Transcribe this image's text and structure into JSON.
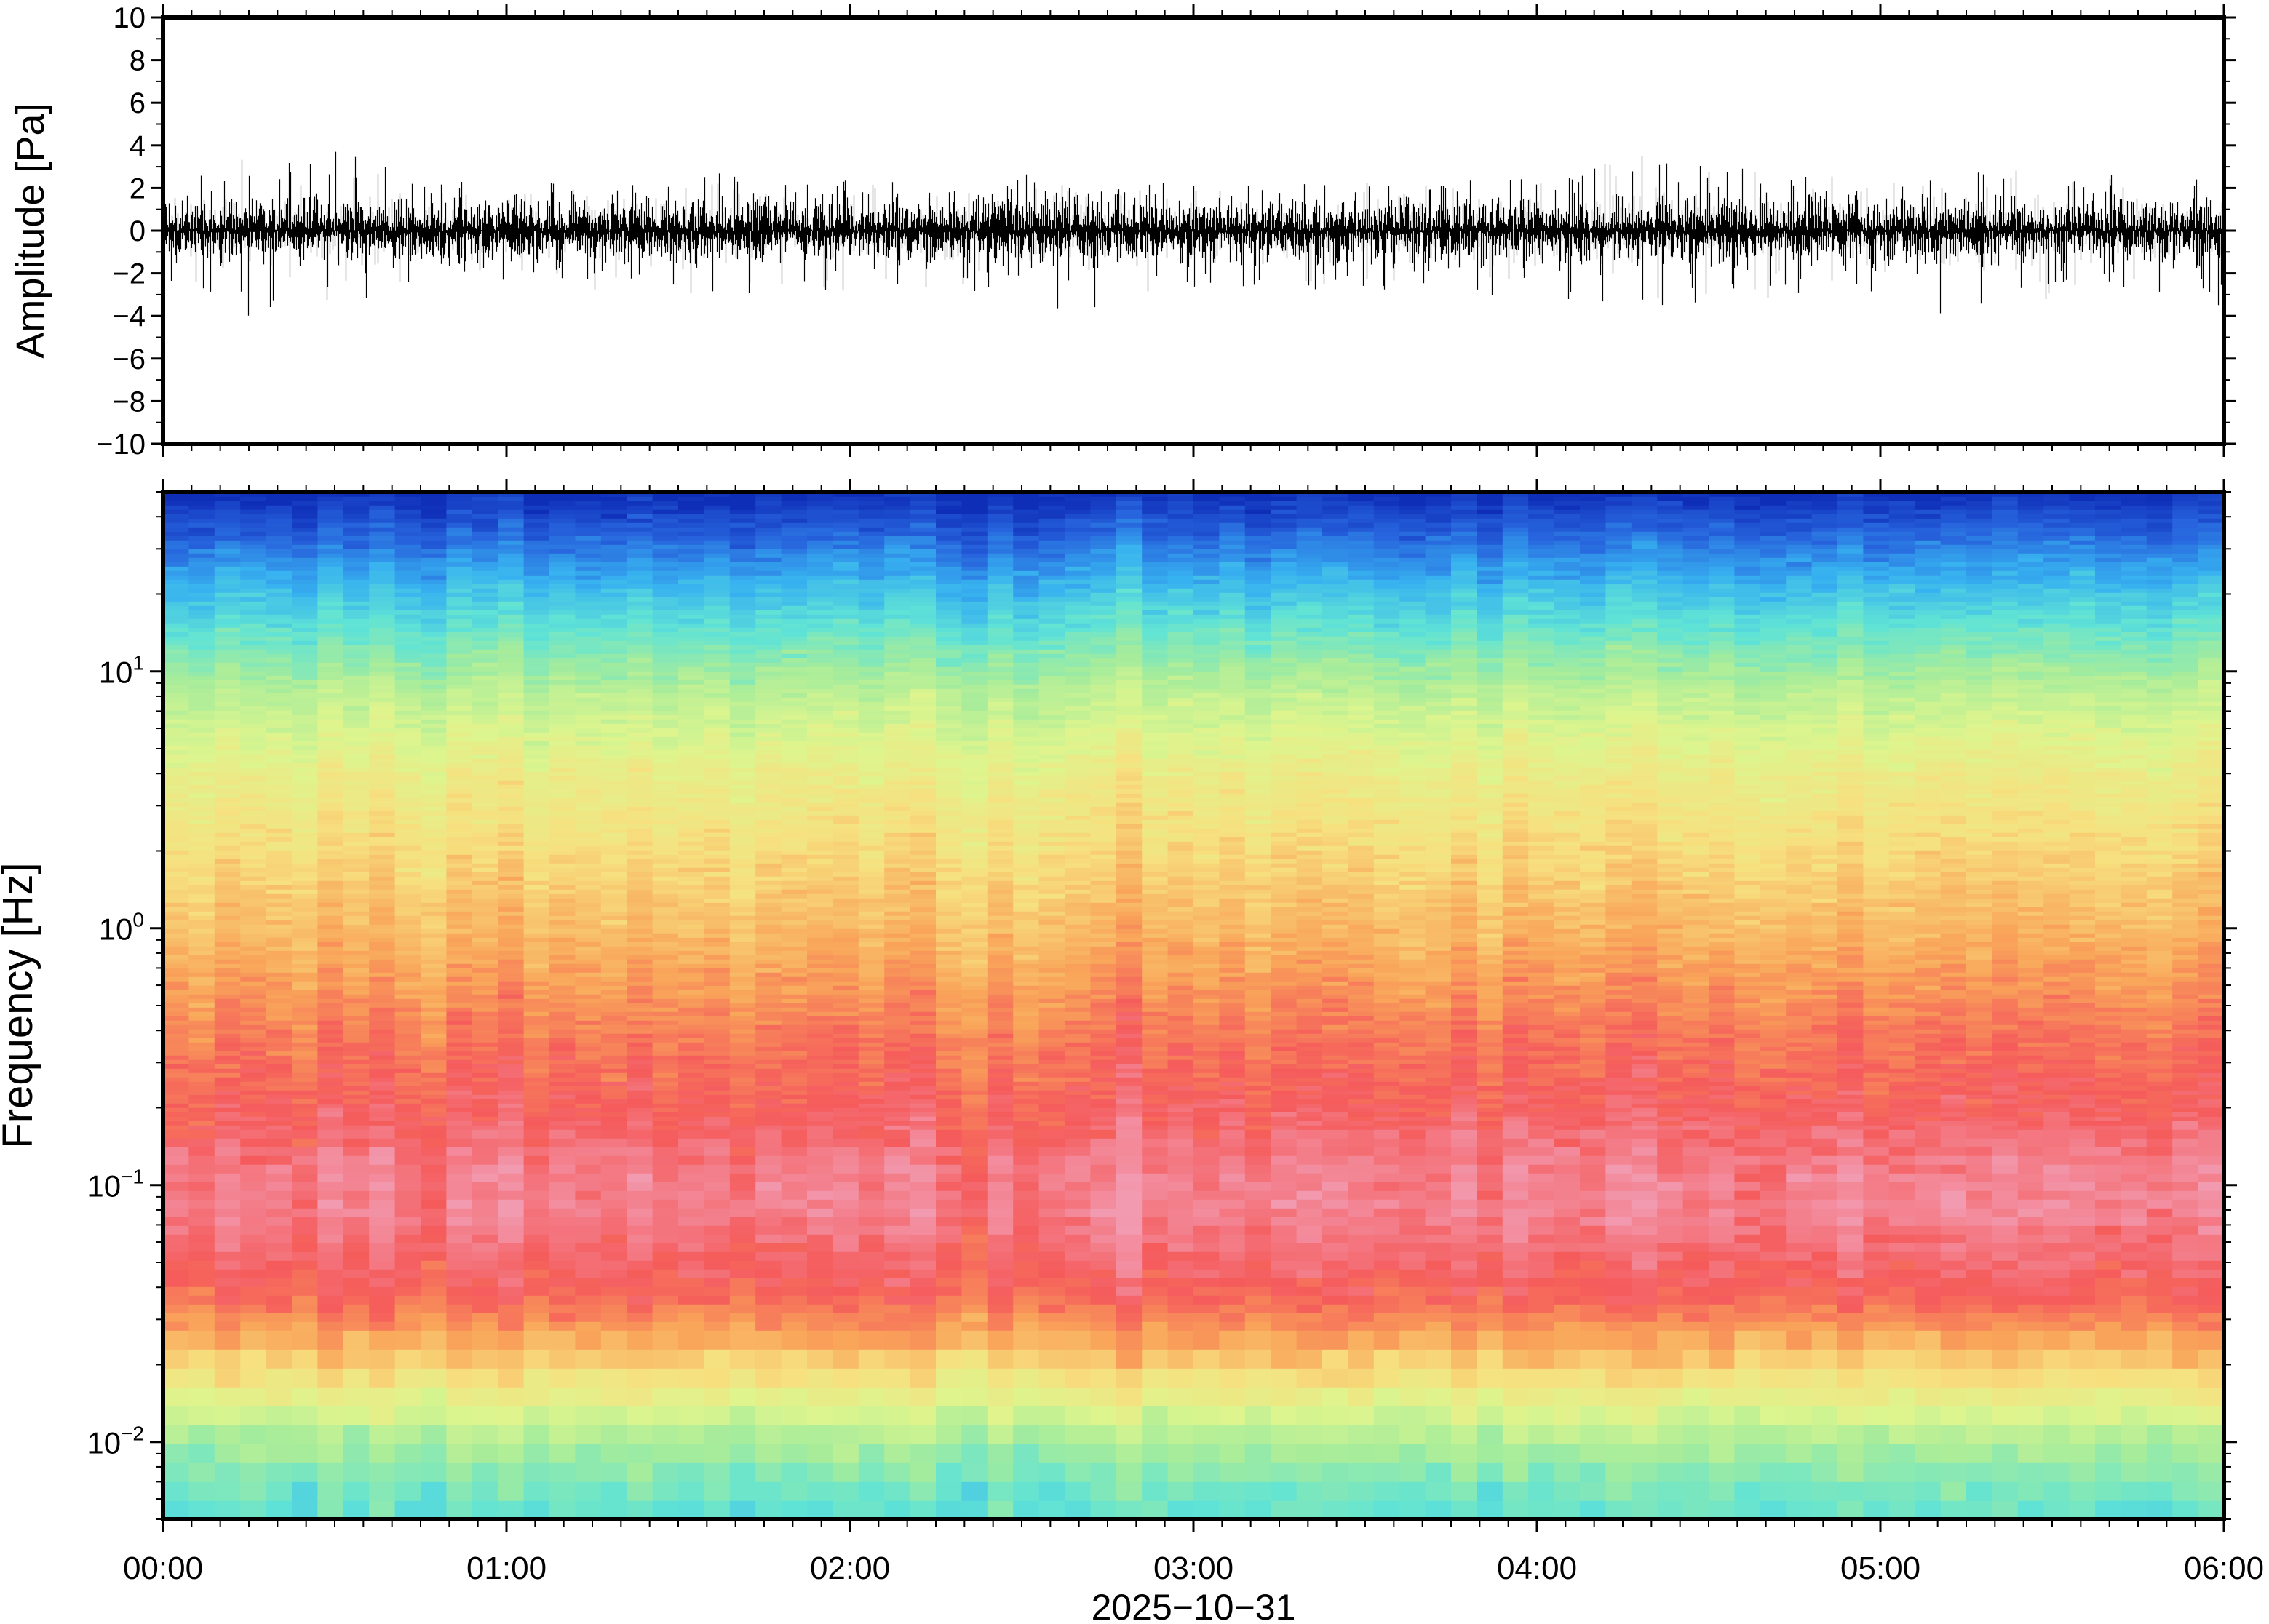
{
  "chart_data": [
    {
      "type": "line",
      "panel": "waveform",
      "ylabel": "Amplitude [Pa]",
      "ylim": [
        -10,
        10
      ],
      "yticks": [
        {
          "value": 10,
          "label": "10"
        },
        {
          "value": 8,
          "label": "8"
        },
        {
          "value": 6,
          "label": "6"
        },
        {
          "value": 4,
          "label": "4"
        },
        {
          "value": 2,
          "label": "2"
        },
        {
          "value": 0,
          "label": "0"
        },
        {
          "value": -2,
          "label": "−2"
        },
        {
          "value": -4,
          "label": "−4"
        },
        {
          "value": -6,
          "label": "−6"
        },
        {
          "value": -8,
          "label": "−8"
        },
        {
          "value": -10,
          "label": "−10"
        }
      ],
      "xlim": [
        "2025-10-31T00:00",
        "2025-10-31T06:00"
      ],
      "x_hours": [
        0,
        0.25,
        0.5,
        0.75,
        1.0,
        1.25,
        1.5,
        1.75,
        2.0,
        2.25,
        2.5,
        2.75,
        3.0,
        3.25,
        3.5,
        3.75,
        4.0,
        4.25,
        4.5,
        4.75,
        5.0,
        5.25,
        5.5,
        5.75,
        6.0
      ],
      "envelope_max": [
        2.3,
        3.5,
        3.8,
        2.6,
        2.2,
        2.3,
        2.5,
        2.9,
        2.4,
        2.6,
        2.7,
        2.3,
        2.2,
        2.1,
        2.4,
        2.3,
        2.5,
        3.6,
        3.5,
        2.6,
        2.6,
        2.9,
        2.8,
        2.6,
        2.7
      ],
      "envelope_min": [
        -2.8,
        -4.1,
        -3.6,
        -2.9,
        -2.6,
        -2.8,
        -3.0,
        -3.0,
        -2.9,
        -2.9,
        -3.2,
        -4.5,
        -2.8,
        -2.7,
        -3.0,
        -3.0,
        -3.1,
        -4.1,
        -3.5,
        -3.1,
        -3.2,
        -4.5,
        -3.2,
        -3.3,
        -3.5
      ],
      "typical_spread": 1.5
    },
    {
      "type": "heatmap",
      "panel": "spectrogram",
      "ylabel": "Frequency [Hz]",
      "yscale": "log",
      "ylim": [
        0.005,
        50
      ],
      "yticks": [
        {
          "value": 0.01,
          "base": "10",
          "exp": "−2"
        },
        {
          "value": 0.1,
          "base": "10",
          "exp": "−1"
        },
        {
          "value": 1,
          "base": "10",
          "exp": "0"
        },
        {
          "value": 10,
          "base": "10",
          "exp": "1"
        }
      ],
      "xlim": [
        "2025-10-31T00:00",
        "2025-10-31T06:00"
      ],
      "colormap": [
        "#f29ab0",
        "#f55b5b",
        "#f9a65a",
        "#f7e07f",
        "#ddf58e",
        "#a6ec9b",
        "#5fe3d6",
        "#37b1f0",
        "#2764dd",
        "#0f2eb8"
      ],
      "color_profile_by_frequency": [
        {
          "freq": 0.005,
          "level": 6.0
        },
        {
          "freq": 0.008,
          "level": 5.3
        },
        {
          "freq": 0.011,
          "level": 4.6
        },
        {
          "freq": 0.016,
          "level": 3.4
        },
        {
          "freq": 0.024,
          "level": 2.2
        },
        {
          "freq": 0.035,
          "level": 1.2
        },
        {
          "freq": 0.05,
          "level": 0.8
        },
        {
          "freq": 0.08,
          "level": 0.35
        },
        {
          "freq": 0.12,
          "level": 0.45
        },
        {
          "freq": 0.2,
          "level": 0.95
        },
        {
          "freq": 0.35,
          "level": 1.3
        },
        {
          "freq": 0.6,
          "level": 1.8
        },
        {
          "freq": 1.0,
          "level": 2.3
        },
        {
          "freq": 2.0,
          "level": 2.9
        },
        {
          "freq": 4.0,
          "level": 3.5
        },
        {
          "freq": 8.0,
          "level": 4.5
        },
        {
          "freq": 13.0,
          "level": 5.6
        },
        {
          "freq": 20.0,
          "level": 6.6
        },
        {
          "freq": 30.0,
          "level": 7.6
        },
        {
          "freq": 40.0,
          "level": 8.4
        },
        {
          "freq": 50.0,
          "level": 9.0
        }
      ]
    }
  ],
  "x_axis": {
    "ticks": [
      "00:00",
      "01:00",
      "02:00",
      "03:00",
      "04:00",
      "05:00",
      "06:00"
    ],
    "date_label": "2025−10−31"
  }
}
